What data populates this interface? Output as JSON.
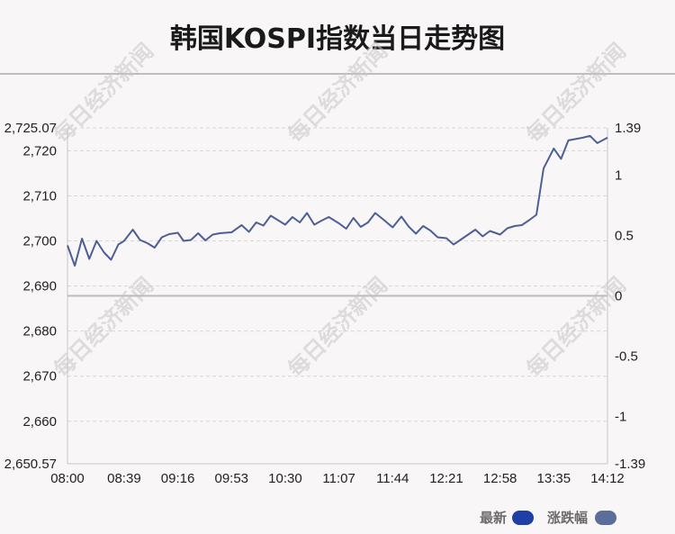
{
  "header": {
    "title": "韩国KOSPI指数当日走势图"
  },
  "watermark": "每日经济新闻",
  "legend": [
    {
      "label": "最新",
      "color": "#1e3fa6"
    },
    {
      "label": "涨跌幅",
      "color": "#5b6e99"
    }
  ],
  "colors": {
    "line": "#4e5f93",
    "grid": "#d9d6d7",
    "axis": "#c7c7c7",
    "zero_line": "#bcbcbc"
  },
  "chart_data": {
    "type": "line",
    "xlabel": "",
    "ylabel": "",
    "x_ticks": [
      "08:00",
      "08:39",
      "09:16",
      "09:53",
      "10:30",
      "11:07",
      "11:44",
      "12:21",
      "12:58",
      "13:35",
      "14:12"
    ],
    "y_left_ticks": [
      "2,725.07",
      "2,720",
      "2,710",
      "2,700",
      "2,690",
      "2,680",
      "2,670",
      "2,660",
      "2,650.57"
    ],
    "y_left_range": [
      2650.57,
      2725.07
    ],
    "y_right_ticks": [
      "1.39",
      "1",
      "0.5",
      "0",
      "-0.5",
      "-1",
      "-1.39"
    ],
    "y_right_range": [
      -1.39,
      1.39
    ],
    "zero_value": 2687.82,
    "grid": true,
    "legend_position": "bottom-right",
    "series": [
      {
        "name": "最新",
        "x": [
          "08:00",
          "08:05",
          "08:10",
          "08:15",
          "08:20",
          "08:25",
          "08:30",
          "08:35",
          "08:39",
          "08:45",
          "08:50",
          "08:55",
          "09:00",
          "09:05",
          "09:10",
          "09:16",
          "09:20",
          "09:25",
          "09:30",
          "09:35",
          "09:40",
          "09:45",
          "09:53",
          "10:00",
          "10:05",
          "10:10",
          "10:15",
          "10:20",
          "10:25",
          "10:30",
          "10:35",
          "10:40",
          "10:45",
          "10:50",
          "10:55",
          "11:00",
          "11:07",
          "11:12",
          "11:17",
          "11:22",
          "11:27",
          "11:32",
          "11:37",
          "11:44",
          "11:50",
          "11:55",
          "12:00",
          "12:05",
          "12:10",
          "12:15",
          "12:21",
          "12:26",
          "12:31",
          "12:36",
          "12:41",
          "12:46",
          "12:51",
          "12:58",
          "13:03",
          "13:08",
          "13:13",
          "13:18",
          "13:23",
          "13:28",
          "13:35",
          "13:40",
          "13:45",
          "13:50",
          "13:55",
          "14:00",
          "14:05",
          "14:12"
        ],
        "values": [
          2699.0,
          2694.5,
          2700.5,
          2696.0,
          2700.0,
          2697.5,
          2695.8,
          2699.2,
          2700.0,
          2702.5,
          2700.2,
          2699.5,
          2698.5,
          2700.8,
          2701.5,
          2701.8,
          2700.0,
          2700.2,
          2701.7,
          2700.1,
          2701.4,
          2701.7,
          2701.9,
          2703.5,
          2702.0,
          2704.1,
          2703.4,
          2705.6,
          2704.6,
          2703.6,
          2705.3,
          2704.1,
          2706.2,
          2703.6,
          2704.5,
          2705.3,
          2703.9,
          2702.7,
          2705.1,
          2703.1,
          2704.1,
          2706.2,
          2704.9,
          2703.0,
          2705.4,
          2703.2,
          2701.6,
          2703.3,
          2702.3,
          2700.8,
          2700.6,
          2699.2,
          2700.3,
          2701.4,
          2702.5,
          2701.0,
          2702.2,
          2701.4,
          2702.8,
          2703.3,
          2703.5,
          2704.6,
          2705.8,
          2716.1,
          2720.5,
          2718.2,
          2722.3,
          2722.6,
          2722.9,
          2723.3,
          2721.7,
          2722.9
        ]
      }
    ]
  }
}
